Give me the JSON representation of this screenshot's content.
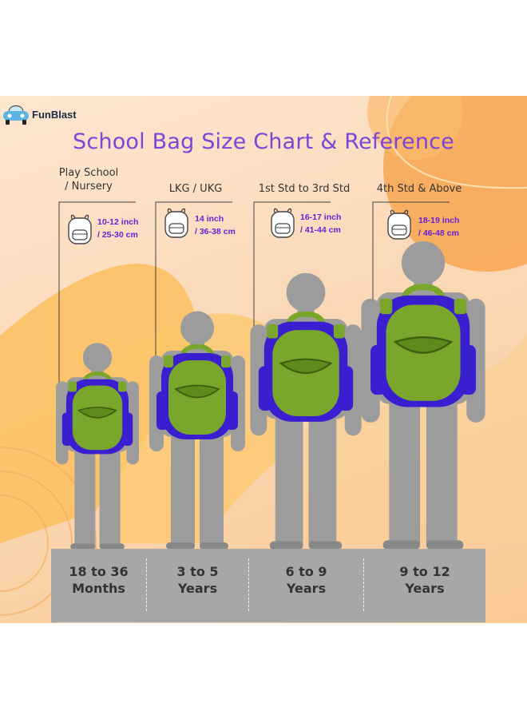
{
  "brand": {
    "name": "FunBlast"
  },
  "title": "School Bag Size Chart & Reference",
  "colors": {
    "title": "#7b45d6",
    "size_text": "#6a1fd6",
    "bag_body": "#3a1fd0",
    "bag_front": "#7aa62c",
    "figure": "#9c9c9c",
    "age_bar": "#a5a8a6"
  },
  "categories": [
    {
      "label_line1": "Play School",
      "label_line2": "/ Nursery",
      "size_line1": "10-12 inch",
      "size_line2": "/ 25-30 cm",
      "age_line1": "18 to 36",
      "age_line2": "Months",
      "icon": "backpack-icon"
    },
    {
      "label_line1": "LKG / UKG",
      "label_line2": "",
      "size_line1": "14 inch",
      "size_line2": "/ 36-38 cm",
      "age_line1": "3 to 5",
      "age_line2": "Years",
      "icon": "backpack-icon"
    },
    {
      "label_line1": "1st Std to 3rd Std",
      "label_line2": "",
      "size_line1": "16-17 inch",
      "size_line2": "/ 41-44 cm",
      "age_line1": "6 to 9",
      "age_line2": "Years",
      "icon": "backpack-icon"
    },
    {
      "label_line1": "4th Std & Above",
      "label_line2": "",
      "size_line1": "18-19 inch",
      "size_line2": "/ 46-48 cm",
      "age_line1": "9 to 12",
      "age_line2": "Years",
      "icon": "backpack-icon"
    }
  ]
}
